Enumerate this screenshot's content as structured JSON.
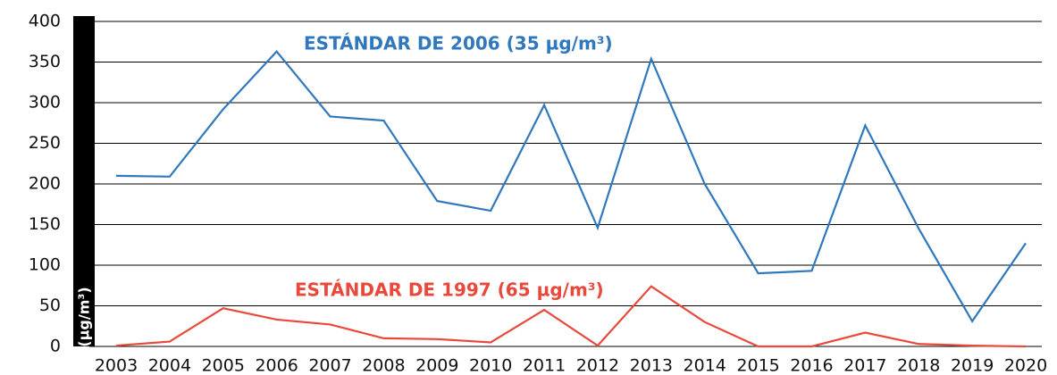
{
  "chart_data": {
    "type": "line",
    "y_label": "(µg/m³)",
    "categories": [
      "2003",
      "2004",
      "2005",
      "2006",
      "2007",
      "2008",
      "2009",
      "2010",
      "2011",
      "2012",
      "2013",
      "2014",
      "2015",
      "2016",
      "2017",
      "2018",
      "2019",
      "2020"
    ],
    "series": [
      {
        "name": "ESTÁNDAR DE 2006 (35 µg/m³)",
        "color": "#2f78bd",
        "values": [
          210,
          209,
          292,
          363,
          283,
          278,
          179,
          167,
          297,
          146,
          354,
          200,
          90,
          93,
          272,
          145,
          31,
          127
        ]
      },
      {
        "name": "ESTÁNDAR DE 1997 (65 µg/m³)",
        "color": "#e9483b",
        "values": [
          1,
          6,
          47,
          33,
          27,
          10,
          9,
          5,
          45,
          1,
          74,
          30,
          0,
          0,
          17,
          3,
          1,
          0
        ]
      }
    ],
    "ylim": [
      0,
      400
    ],
    "yticks": [
      0,
      50,
      100,
      150,
      200,
      250,
      300,
      350,
      400
    ],
    "grid": true
  }
}
